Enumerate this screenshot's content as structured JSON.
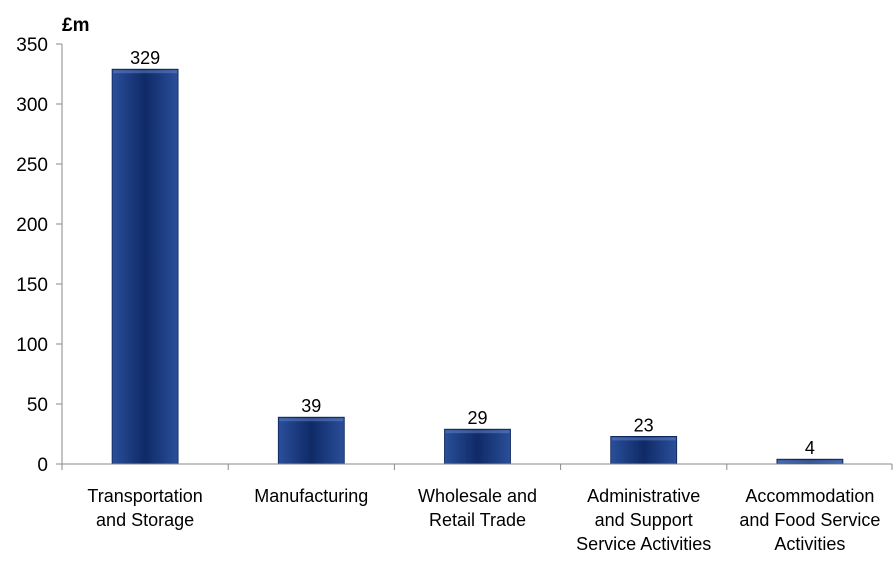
{
  "chart_data": {
    "type": "bar",
    "unit": "£m",
    "categories": [
      [
        "Transportation",
        "and Storage"
      ],
      [
        "Manufacturing"
      ],
      [
        "Wholesale and",
        "Retail Trade"
      ],
      [
        "Administrative",
        "and Support",
        "Service Activities"
      ],
      [
        "Accommodation",
        "and Food Service",
        "Activities"
      ]
    ],
    "values": [
      329,
      39,
      29,
      23,
      4
    ],
    "data_labels": [
      "329",
      "39",
      "29",
      "23",
      "4"
    ],
    "ylim": [
      0,
      350
    ],
    "yticks": [
      0,
      50,
      100,
      150,
      200,
      250,
      300,
      350
    ],
    "grid": false,
    "legend": "none",
    "colors": {
      "bar_light": "#2a4f9a",
      "bar_dark": "#0f2a66",
      "bar_edge": "#0b2157",
      "axis": "#8a8a8a"
    }
  }
}
